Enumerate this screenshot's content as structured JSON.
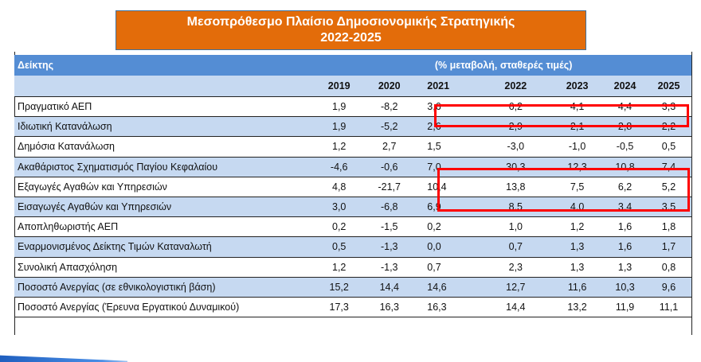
{
  "title": {
    "line1": "Μεσοπρόθεσμο Πλαίσιο Δημοσιονομικής Στρατηγικής",
    "line2": "2022-2025",
    "background": "#e36c0a"
  },
  "table": {
    "indicator_header": "Δείκτης",
    "units_header": "(% μεταβολή, σταθερές τιμές)",
    "years": [
      "2019",
      "2020",
      "2021",
      "2022",
      "2023",
      "2024",
      "2025"
    ],
    "rows": [
      {
        "label": "Πραγματικό ΑΕΠ",
        "values": [
          "1,9",
          "-8,2",
          "3,6",
          "6,2",
          "4,1",
          "4,4",
          "3,3"
        ],
        "shaded": false
      },
      {
        "label": "Ιδιωτική Κατανάλωση",
        "values": [
          "1,9",
          "-5,2",
          "2,6",
          "2,9",
          "2,1",
          "2,8",
          "2,2"
        ],
        "shaded": true
      },
      {
        "label": "Δημόσια Κατανάλωση",
        "values": [
          "1,2",
          "2,7",
          "1,5",
          "-3,0",
          "-1,0",
          "-0,5",
          "0,5"
        ],
        "shaded": false
      },
      {
        "label": "Ακαθάριστος Σχηματισμός Παγίου Κεφαλαίου",
        "values": [
          "-4,6",
          "-0,6",
          "7,0",
          "30,3",
          "12,3",
          "10,8",
          "7,4"
        ],
        "shaded": true
      },
      {
        "label": "Εξαγωγές Αγαθών και Υπηρεσιών",
        "values": [
          "4,8",
          "-21,7",
          "10,4",
          "13,8",
          "7,5",
          "6,2",
          "5,2"
        ],
        "shaded": false
      },
      {
        "label": "Εισαγωγές Αγαθών και Υπηρεσιών",
        "values": [
          "3,0",
          "-6,8",
          "6,9",
          "8,5",
          "4,0",
          "3,4",
          "3,5"
        ],
        "shaded": true
      },
      {
        "label": "Αποπληθωριστής ΑΕΠ",
        "values": [
          "0,2",
          "-1,5",
          "0,2",
          "1,0",
          "1,2",
          "1,6",
          "1,8"
        ],
        "shaded": false
      },
      {
        "label": "Εναρμονισμένος Δείκτης Τιμών Καταναλωτή",
        "values": [
          "0,5",
          "-1,3",
          "0,0",
          "0,7",
          "1,3",
          "1,6",
          "1,7"
        ],
        "shaded": true
      },
      {
        "label": "Συνολική Απασχόληση",
        "values": [
          "1,2",
          "-1,3",
          "0,7",
          "2,3",
          "1,3",
          "1,3",
          "0,8"
        ],
        "shaded": false
      },
      {
        "label": "Ποσοστό Ανεργίας (σε εθνικολογιστική βάση)",
        "values": [
          "15,2",
          "14,4",
          "14,6",
          "12,7",
          "11,6",
          "10,3",
          "9,6"
        ],
        "shaded": true
      },
      {
        "label": "Ποσοστό Ανεργίας (Έρευνα Εργατικού Δυναμικού)",
        "values": [
          "17,3",
          "16,3",
          "16,3",
          "14,4",
          "13,2",
          "11,9",
          "11,1"
        ],
        "shaded": false
      }
    ],
    "highlights": [
      {
        "rows": [
          "Πραγματικό ΑΕΠ"
        ],
        "years": [
          "2021",
          "2022",
          "2023",
          "2024",
          "2025"
        ],
        "color": "#ff0000"
      },
      {
        "rows": [
          "Ακαθάριστος Σχηματισμός Παγίου Κεφαλαίου",
          "Εξαγωγές Αγαθών και Υπηρεσιών"
        ],
        "years": [
          "2021",
          "2022",
          "2023",
          "2024",
          "2025"
        ],
        "color": "#ff0000"
      }
    ],
    "colors": {
      "header_blue": "#548dd4",
      "row_shade": "#c6d9f1"
    }
  }
}
